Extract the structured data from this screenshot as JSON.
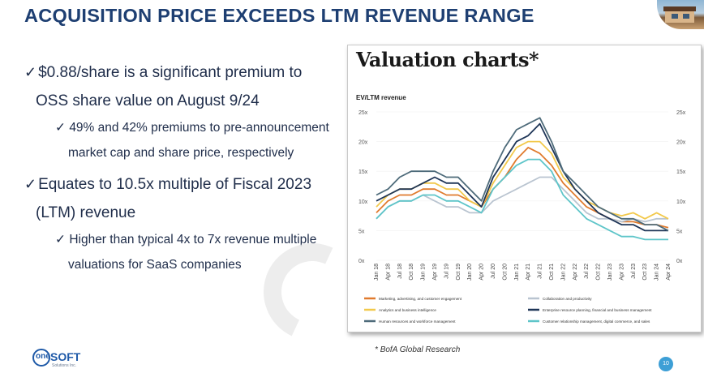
{
  "slide": {
    "title": "ACQUISITION PRICE EXCEEDS LTM REVENUE RANGE",
    "page_number": "10",
    "source": "BofA Global Research",
    "source_marker": "*",
    "logo": {
      "brand_one": "one",
      "brand_soft": "SOFT",
      "tagline": "Solutions Inc."
    }
  },
  "bullets": [
    {
      "check": "✓",
      "line1": "$0.88/share is a significant premium to",
      "line2": "OSS share value on August 9/24",
      "sub": {
        "check": "✓",
        "line1": "49% and 42% premiums to pre-announcement",
        "line2": "market cap and share price, respectively"
      }
    },
    {
      "check": "✓",
      "line1": "Equates to 10.5x multiple of Fiscal 2023",
      "line2": "(LTM) revenue",
      "sub": {
        "check": "✓",
        "line1": "Higher than typical 4x to 7x revenue multiple",
        "line2": "valuations for SaaS companies"
      }
    }
  ],
  "chart_data": {
    "type": "line",
    "title": "Valuation charts*",
    "subtitle": "EV/LTM revenue",
    "ylim": [
      0,
      25
    ],
    "y_ticks": [
      "0x",
      "5x",
      "10x",
      "15x",
      "20x",
      "25x"
    ],
    "x": [
      "Jan 18",
      "Apr 18",
      "Jul 18",
      "Oct 18",
      "Jan 19",
      "Apr 19",
      "Jul 19",
      "Oct 19",
      "Jan 20",
      "Apr 20",
      "Jul 20",
      "Oct 20",
      "Jan 21",
      "Apr 21",
      "Jul 21",
      "Oct 21",
      "Jan 22",
      "Apr 22",
      "Jul 22",
      "Oct 22",
      "Jan 23",
      "Apr 23",
      "Jul 23",
      "Oct 23",
      "Jan 24",
      "Apr 24"
    ],
    "legend_position": "bottom",
    "series": [
      {
        "name": "Marketing, advertising, and customer engagement",
        "color": "#e07b2e",
        "values": [
          8,
          10,
          11,
          11,
          12,
          12,
          11,
          11,
          10,
          9,
          12,
          14,
          17,
          19,
          18,
          16,
          13,
          11,
          9,
          8,
          7,
          6.5,
          6.5,
          6,
          6,
          5.5
        ]
      },
      {
        "name": "Collaboration and productivity",
        "color": "#b9c4d0",
        "values": [
          7,
          9,
          10,
          10,
          11,
          10,
          9,
          9,
          8,
          8,
          10,
          11,
          12,
          13,
          14,
          14,
          12,
          10,
          8,
          7,
          7,
          6.5,
          7,
          6.5,
          7,
          7
        ]
      },
      {
        "name": "Analytics and business intelligence",
        "color": "#f2c94c",
        "values": [
          9,
          11,
          12,
          12,
          13,
          13,
          12,
          12,
          10,
          9,
          13,
          16,
          19,
          20,
          20,
          18,
          14,
          12,
          10,
          9,
          8,
          7.5,
          8,
          7,
          8,
          7
        ]
      },
      {
        "name": "Enterprise resource planning, financial and business management",
        "color": "#1e3557",
        "values": [
          10,
          11,
          12,
          12,
          13,
          14,
          13,
          13,
          11,
          9,
          14,
          17,
          20,
          21,
          23,
          19,
          15,
          12,
          10,
          8,
          7,
          6,
          6,
          5,
          5,
          5
        ]
      },
      {
        "name": "Human resources and workforce management",
        "color": "#4e6b7a",
        "values": [
          11,
          12,
          14,
          15,
          15,
          15,
          14,
          14,
          12,
          10,
          15,
          19,
          22,
          23,
          24,
          20,
          15,
          13,
          11,
          9,
          8,
          7,
          7,
          6,
          6,
          5
        ]
      },
      {
        "name": "Customer relationship management, digital commerce, and sales",
        "color": "#5ec5c9",
        "values": [
          7,
          9,
          10,
          10,
          11,
          11,
          10,
          10,
          9,
          8,
          12,
          14,
          16,
          17,
          17,
          15,
          11,
          9,
          7,
          6,
          5,
          4,
          4,
          3.5,
          3.5,
          3.5
        ]
      }
    ]
  }
}
